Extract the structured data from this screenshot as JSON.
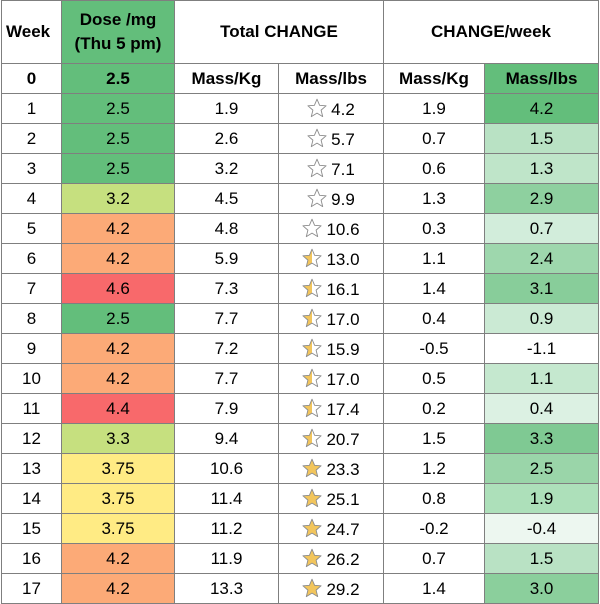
{
  "header": {
    "week": "Week",
    "dose_line1": "Dose /mg",
    "dose_line2": "(Thu 5 pm)",
    "total_change": "Total CHANGE",
    "change_week": "CHANGE/week",
    "mass_kg": "Mass/Kg",
    "mass_lbs": "Mass/lbs",
    "mass_kg_2": "Mass/Kg",
    "mass_lbs_2": "Mass/lbs"
  },
  "colors": {
    "green": "#63be7b",
    "light_green": "#c6e07f",
    "yellow": "#ffeb84",
    "orange": "#fcaa77",
    "red": "#f8696b",
    "star_gold": "#f2c55c",
    "star_outline": "#8c8c8c"
  },
  "rows": [
    {
      "week": "0",
      "dose": "2.5",
      "dose_color": "#63be7b",
      "total_kg": "",
      "total_lbs": "",
      "star_fill": null,
      "week_kg": "",
      "week_lbs": "",
      "lbs_color": "#ffffff"
    },
    {
      "week": "1",
      "dose": "2.5",
      "dose_color": "#63be7b",
      "total_kg": "1.9",
      "total_lbs": "4.2",
      "star_fill": 0.0,
      "week_kg": "1.9",
      "week_lbs": "4.2",
      "lbs_color": "#63be7b"
    },
    {
      "week": "2",
      "dose": "2.5",
      "dose_color": "#63be7b",
      "total_kg": "2.6",
      "total_lbs": "5.7",
      "star_fill": 0.0,
      "week_kg": "0.7",
      "week_lbs": "1.5",
      "lbs_color": "#b9e2c4"
    },
    {
      "week": "3",
      "dose": "2.5",
      "dose_color": "#63be7b",
      "total_kg": "3.2",
      "total_lbs": "7.1",
      "star_fill": 0.0,
      "week_kg": "0.6",
      "week_lbs": "1.3",
      "lbs_color": "#bfe5c9"
    },
    {
      "week": "4",
      "dose": "3.2",
      "dose_color": "#c6e07f",
      "total_kg": "4.5",
      "total_lbs": "9.9",
      "star_fill": 0.0,
      "week_kg": "1.3",
      "week_lbs": "2.9",
      "lbs_color": "#8ed09f"
    },
    {
      "week": "5",
      "dose": "4.2",
      "dose_color": "#fcaa77",
      "total_kg": "4.8",
      "total_lbs": "10.6",
      "star_fill": 0.0,
      "week_kg": "0.3",
      "week_lbs": "0.7",
      "lbs_color": "#d2eddb"
    },
    {
      "week": "6",
      "dose": "4.2",
      "dose_color": "#fcaa77",
      "total_kg": "5.9",
      "total_lbs": "13.0",
      "star_fill": 0.5,
      "week_kg": "1.1",
      "week_lbs": "2.4",
      "lbs_color": "#9ed7ad"
    },
    {
      "week": "7",
      "dose": "4.6",
      "dose_color": "#f8696b",
      "total_kg": "7.3",
      "total_lbs": "16.1",
      "star_fill": 0.5,
      "week_kg": "1.4",
      "week_lbs": "3.1",
      "lbs_color": "#88cd9a"
    },
    {
      "week": "8",
      "dose": "2.5",
      "dose_color": "#63be7b",
      "total_kg": "7.7",
      "total_lbs": "17.0",
      "star_fill": 0.5,
      "week_kg": "0.4",
      "week_lbs": "0.9",
      "lbs_color": "#cbead4"
    },
    {
      "week": "9",
      "dose": "4.2",
      "dose_color": "#fcaa77",
      "total_kg": "7.2",
      "total_lbs": "15.9",
      "star_fill": 0.5,
      "week_kg": "-0.5",
      "week_lbs": "-1.1",
      "lbs_color": "#ffffff"
    },
    {
      "week": "10",
      "dose": "4.2",
      "dose_color": "#fcaa77",
      "total_kg": "7.7",
      "total_lbs": "17.0",
      "star_fill": 0.5,
      "week_kg": "0.5",
      "week_lbs": "1.1",
      "lbs_color": "#c5e8cf"
    },
    {
      "week": "11",
      "dose": "4.4",
      "dose_color": "#f8696b",
      "total_kg": "7.9",
      "total_lbs": "17.4",
      "star_fill": 0.5,
      "week_kg": "0.2",
      "week_lbs": "0.4",
      "lbs_color": "#dcf1e3"
    },
    {
      "week": "12",
      "dose": "3.3",
      "dose_color": "#c6e07f",
      "total_kg": "9.4",
      "total_lbs": "20.7",
      "star_fill": 0.5,
      "week_kg": "1.5",
      "week_lbs": "3.3",
      "lbs_color": "#7fc993"
    },
    {
      "week": "13",
      "dose": "3.75",
      "dose_color": "#ffeb84",
      "total_kg": "10.6",
      "total_lbs": "23.3",
      "star_fill": 1.0,
      "week_kg": "1.2",
      "week_lbs": "2.5",
      "lbs_color": "#9ad5a9"
    },
    {
      "week": "14",
      "dose": "3.75",
      "dose_color": "#ffeb84",
      "total_kg": "11.4",
      "total_lbs": "25.1",
      "star_fill": 1.0,
      "week_kg": "0.8",
      "week_lbs": "1.9",
      "lbs_color": "#ade0ba"
    },
    {
      "week": "15",
      "dose": "3.75",
      "dose_color": "#ffeb84",
      "total_kg": "11.2",
      "total_lbs": "24.7",
      "star_fill": 1.0,
      "week_kg": "-0.2",
      "week_lbs": "-0.4",
      "lbs_color": "#edf7f0"
    },
    {
      "week": "16",
      "dose": "4.2",
      "dose_color": "#fcaa77",
      "total_kg": "11.9",
      "total_lbs": "26.2",
      "star_fill": 1.0,
      "week_kg": "0.7",
      "week_lbs": "1.5",
      "lbs_color": "#b9e2c4"
    },
    {
      "week": "17",
      "dose": "4.2",
      "dose_color": "#fcaa77",
      "total_kg": "13.3",
      "total_lbs": "29.2",
      "star_fill": 1.0,
      "week_kg": "1.4",
      "week_lbs": "3.0",
      "lbs_color": "#8bcf9c"
    }
  ]
}
